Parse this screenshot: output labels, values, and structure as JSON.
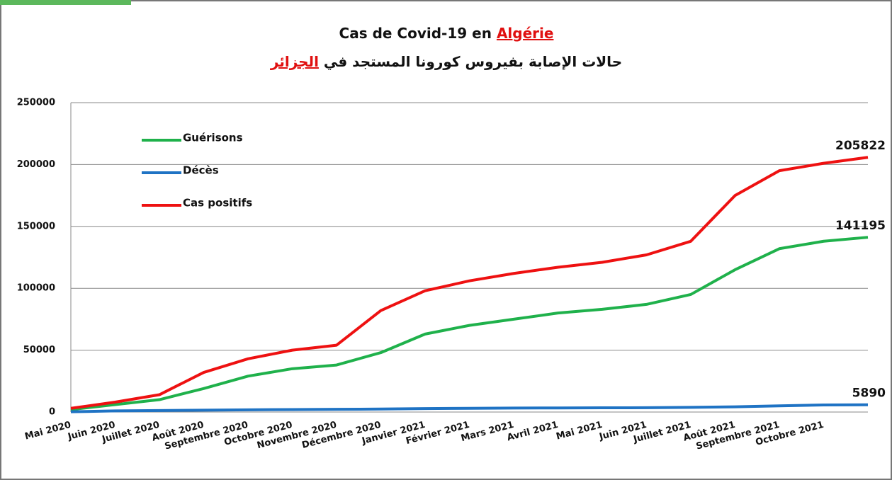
{
  "chart_data": {
    "type": "line",
    "title": "Cas de Covid-19 en",
    "title_highlight": "Algérie",
    "subtitle": "حالات الإصابة بفيروس كورونا المستجد في",
    "subtitle_highlight": "الجزائر",
    "categories": [
      "Mai 2020",
      "Juin 2020",
      "Juillet 2020",
      "Août 2020",
      "Septembre 2020",
      "Octobre 2020",
      "Novembre 2020",
      "Décembre 2020",
      "Janvier 2021",
      "Février 2021",
      "Mars 2021",
      "Avril 2021",
      "Mai 2021",
      "Juin 2021",
      "Juillet 2021",
      "Août 2021",
      "Septembre 2021",
      "Octobre 2021",
      null
    ],
    "series": [
      {
        "name": "Guérisons",
        "color": "#1fb14b",
        "values": [
          2000,
          6000,
          10000,
          19000,
          29000,
          35000,
          38000,
          48000,
          63000,
          70000,
          75000,
          80000,
          83000,
          87000,
          95000,
          115000,
          132000,
          138000,
          141195
        ]
      },
      {
        "name": "Décès",
        "color": "#1f73c4",
        "values": [
          200,
          900,
          1200,
          1500,
          1800,
          2000,
          2200,
          2400,
          2800,
          3000,
          3200,
          3300,
          3400,
          3500,
          3800,
          4200,
          5000,
          5700,
          5890
        ]
      },
      {
        "name": "Cas positifs",
        "color": "#ee1111",
        "values": [
          3000,
          8000,
          14000,
          32000,
          43000,
          50000,
          54000,
          82000,
          98000,
          106000,
          112000,
          117000,
          121000,
          127000,
          138000,
          175000,
          195000,
          201000,
          205822
        ]
      }
    ],
    "ylim": [
      0,
      250000
    ],
    "yticks": [
      0,
      50000,
      100000,
      150000,
      200000,
      250000
    ],
    "grid": true,
    "legend": "top-left"
  }
}
